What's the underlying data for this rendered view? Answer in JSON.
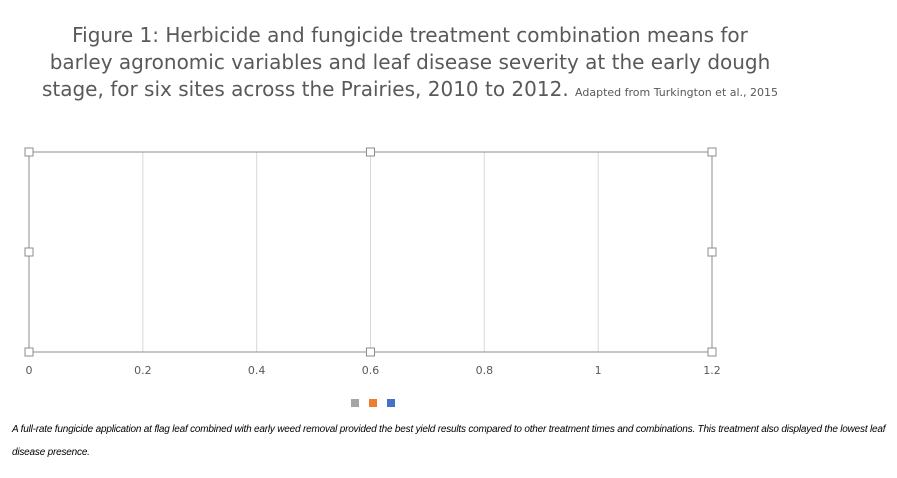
{
  "chart_data": {
    "type": "bar",
    "title": "Figure 1: Herbicide and fungicide treatment combination means for barley agronomic variables and leaf disease severity at the early dough stage, for six sites across the Prairies, 2010 to 2012.",
    "subtitle": "Adapted from Turkington et al., 2015",
    "xlabel": "",
    "ylabel": "",
    "xlim": [
      0,
      1.2
    ],
    "x_ticks": [
      "0",
      "0.2",
      "0.4",
      "0.6",
      "0.8",
      "1",
      "1.2"
    ],
    "categories": [],
    "series": [
      {
        "color": "#a5a5a5",
        "values": []
      },
      {
        "color": "#ed7d31",
        "values": []
      },
      {
        "color": "#4472c4",
        "values": []
      }
    ],
    "grid": true,
    "legend_position": "bottom"
  },
  "caption": "A full-rate fungicide application at flag leaf combined with early weed removal provided the best yield results compared to other treatment times and combinations. This treatment also displayed the lowest leaf disease presence."
}
